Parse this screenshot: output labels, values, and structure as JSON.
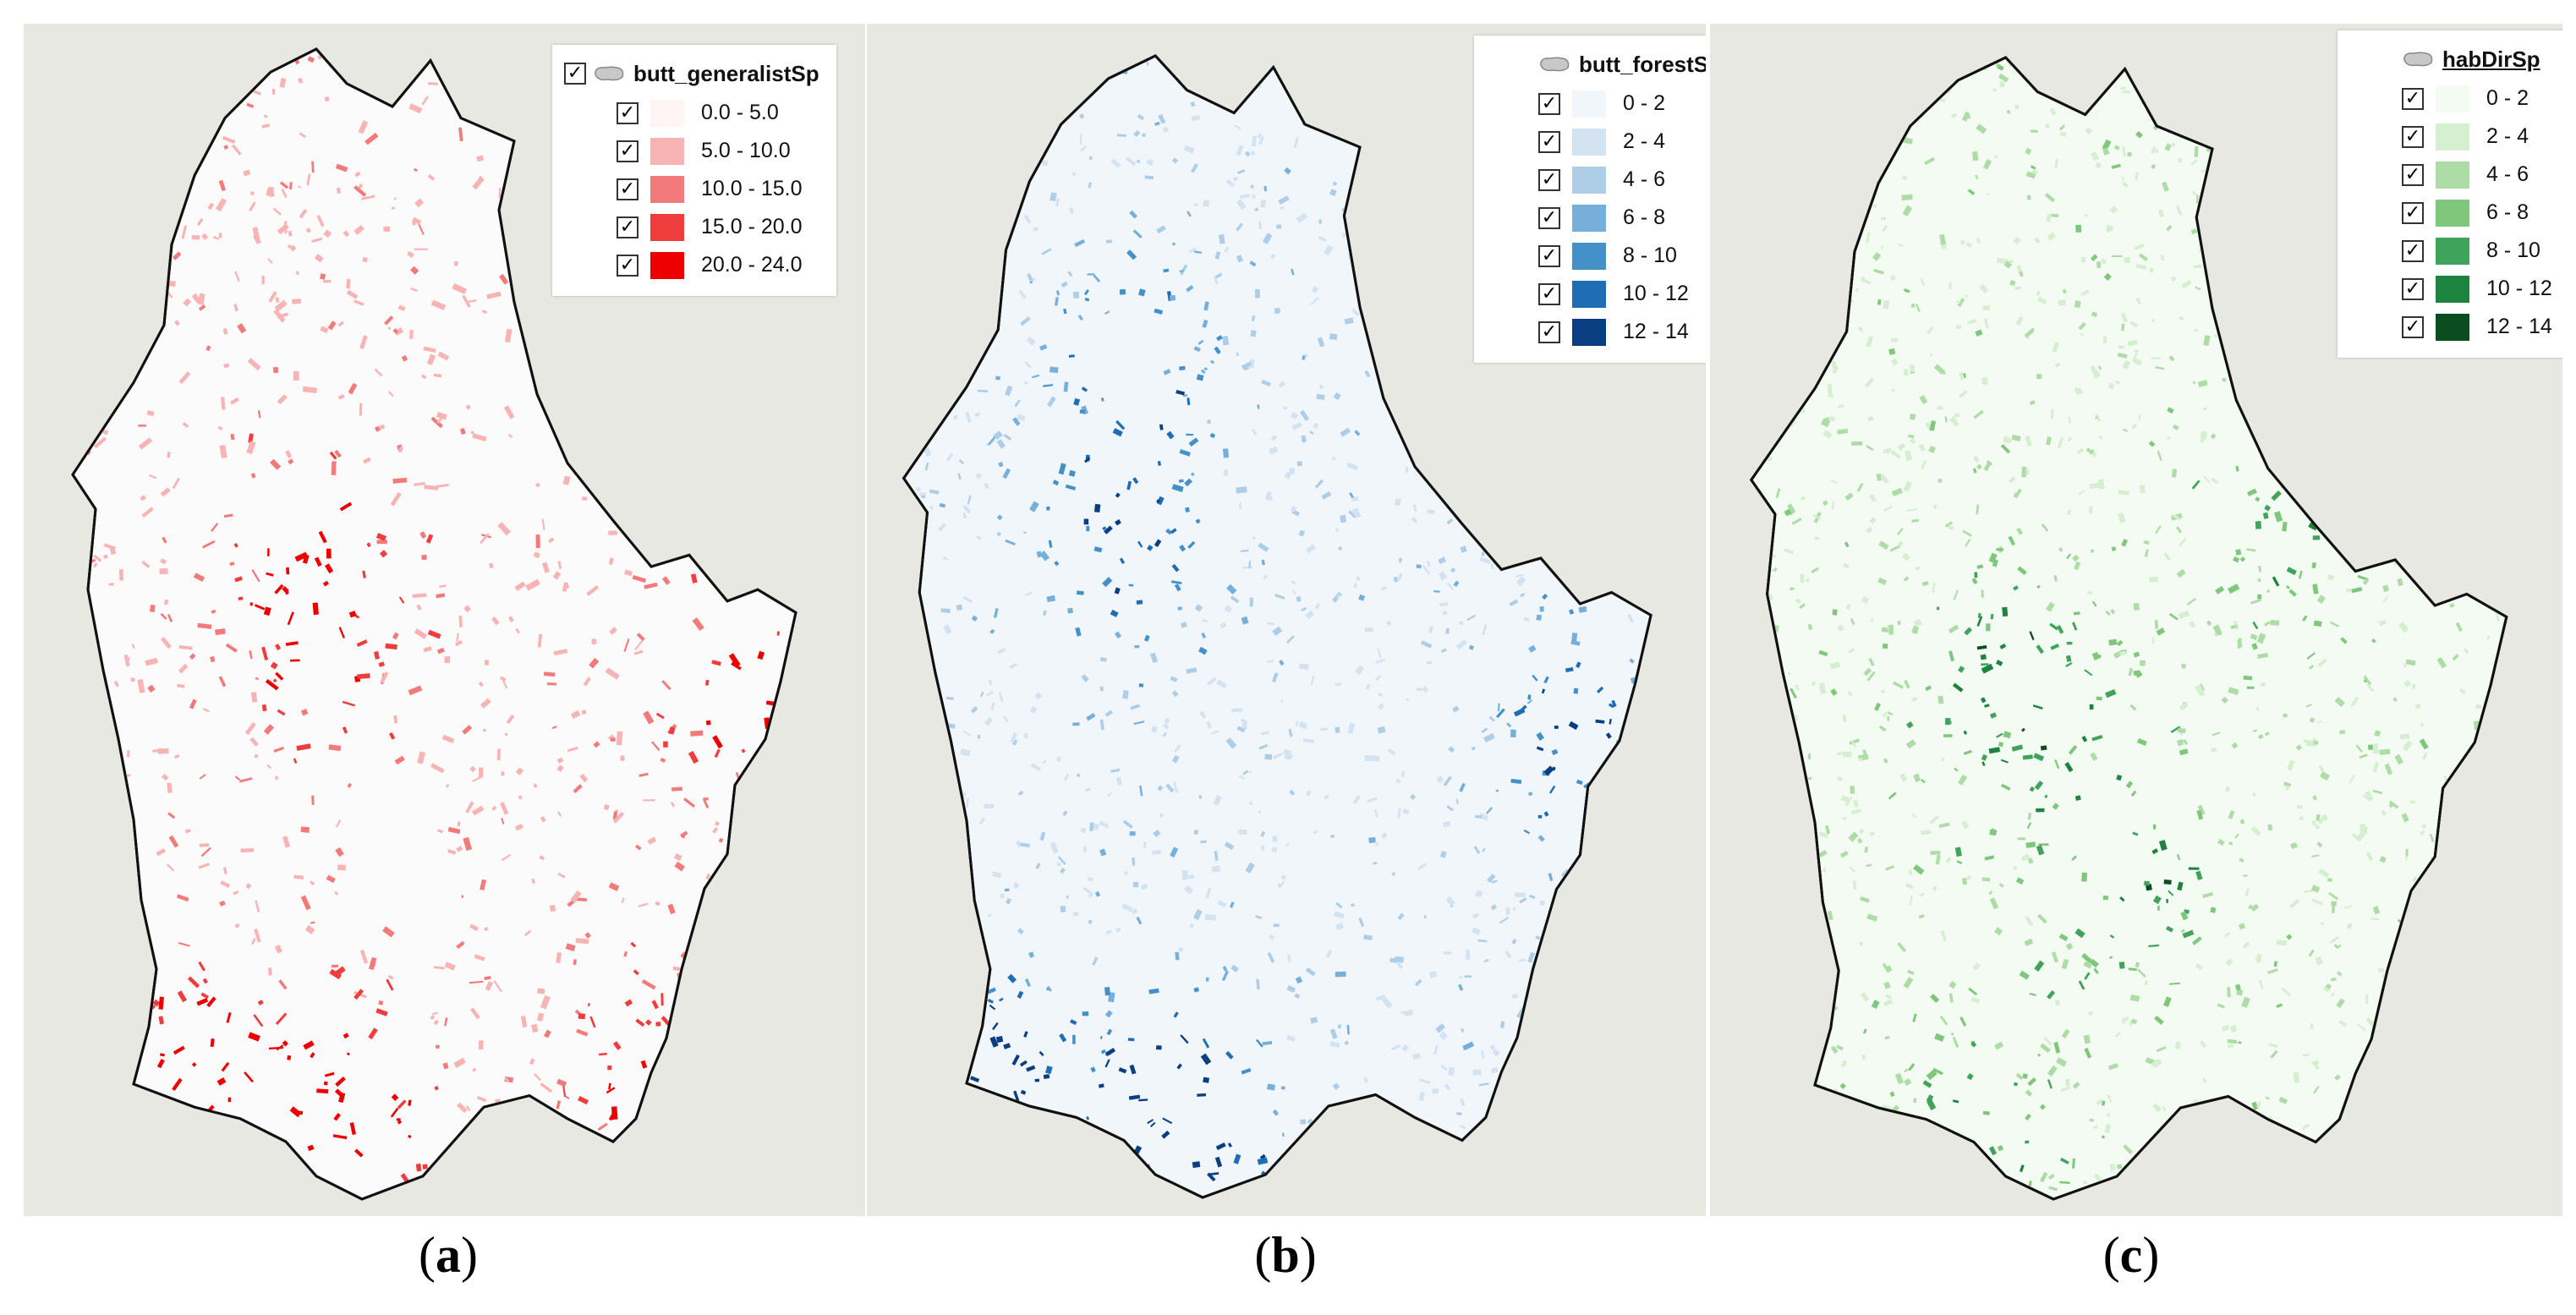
{
  "panels": [
    {
      "id": "a",
      "caption_letter": "a",
      "legend": {
        "title": "butt_generalistSp",
        "title_underlined": false,
        "header_checkbox": true,
        "classes": [
          {
            "label": "0.0 - 5.0",
            "color": "#fff5f5"
          },
          {
            "label": "5.0 - 10.0",
            "color": "#f8b4b4"
          },
          {
            "label": "10.0 - 15.0",
            "color": "#f27a7a"
          },
          {
            "label": "15.0 - 20.0",
            "color": "#ef3c3c"
          },
          {
            "label": "20.0 - 24.0",
            "color": "#ee0000"
          }
        ]
      }
    },
    {
      "id": "b",
      "caption_letter": "b",
      "legend": {
        "title": "butt_forestSp",
        "title_underlined": false,
        "header_checkbox": false,
        "classes": [
          {
            "label": "0 - 2",
            "color": "#f1f6fb"
          },
          {
            "label": "2 - 4",
            "color": "#d3e3f2"
          },
          {
            "label": "4 - 6",
            "color": "#aecde7"
          },
          {
            "label": "6 - 8",
            "color": "#76b0da"
          },
          {
            "label": "8 - 10",
            "color": "#4490c9"
          },
          {
            "label": "10 - 12",
            "color": "#1f6db4"
          },
          {
            "label": "12 - 14",
            "color": "#0a3e82"
          }
        ]
      }
    },
    {
      "id": "c",
      "caption_letter": "c",
      "legend": {
        "title": "habDirSp",
        "title_underlined": true,
        "header_checkbox": false,
        "classes": [
          {
            "label": "0 - 2",
            "color": "#f4fbf2"
          },
          {
            "label": "2 - 4",
            "color": "#d5efd0"
          },
          {
            "label": "4 - 6",
            "color": "#aedca7"
          },
          {
            "label": "6 - 8",
            "color": "#7ec77b"
          },
          {
            "label": "8 - 10",
            "color": "#3fa35b"
          },
          {
            "label": "10 - 12",
            "color": "#1d8440"
          },
          {
            "label": "12 - 14",
            "color": "#0a4d1e"
          }
        ]
      }
    }
  ],
  "checkbox_glyph": "✓",
  "layer_icon": "layer-blob-icon",
  "basemap_color": "#e6e8e1"
}
